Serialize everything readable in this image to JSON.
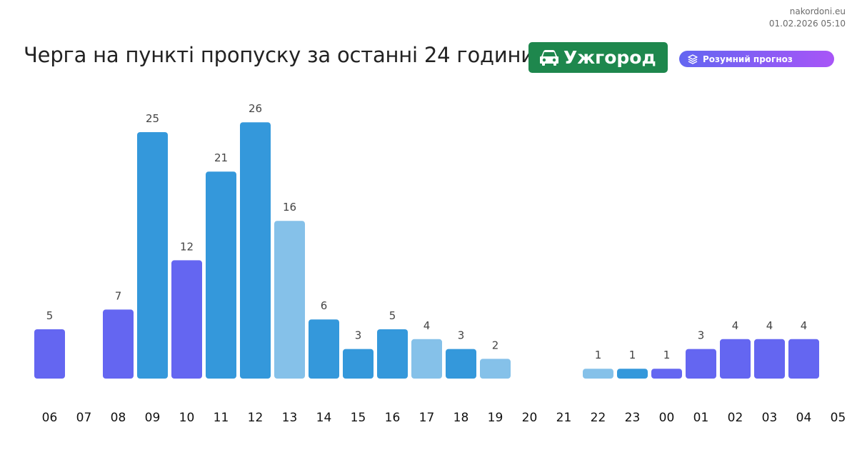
{
  "source": {
    "site": "nakordoni.eu",
    "timestamp": "01.02.2026 05:10"
  },
  "header": {
    "title": "Черга на пункті пропуску за останні 24 години",
    "city_badge": {
      "label": "Ужгород",
      "icon": "car-icon",
      "color": "#1e874d"
    },
    "smart_badge": {
      "label": "Розумний прогноз",
      "icon": "layers-icon",
      "color_start": "#6366f1",
      "color_end": "#a855f7"
    }
  },
  "colors": {
    "purple": "#6466f1",
    "blue": "#3498db",
    "light_blue": "#85c1e9"
  },
  "chart_data": {
    "type": "bar",
    "title": "",
    "xlabel": "",
    "ylabel": "",
    "ylim": [
      0,
      27
    ],
    "grid": false,
    "categories": [
      "06",
      "07",
      "08",
      "09",
      "10",
      "11",
      "12",
      "13",
      "14",
      "15",
      "16",
      "17",
      "18",
      "19",
      "20",
      "21",
      "22",
      "23",
      "00",
      "01",
      "02",
      "03",
      "04",
      "05"
    ],
    "values": [
      5,
      null,
      7,
      25,
      12,
      21,
      26,
      16,
      6,
      3,
      5,
      4,
      3,
      2,
      null,
      null,
      1,
      1,
      1,
      3,
      4,
      4,
      4,
      null
    ],
    "bar_colors": [
      "purple",
      null,
      "purple",
      "blue",
      "purple",
      "blue",
      "blue",
      "light_blue",
      "blue",
      "blue",
      "blue",
      "light_blue",
      "blue",
      "light_blue",
      null,
      null,
      "light_blue",
      "blue",
      "purple",
      "purple",
      "purple",
      "purple",
      "purple",
      null
    ]
  }
}
